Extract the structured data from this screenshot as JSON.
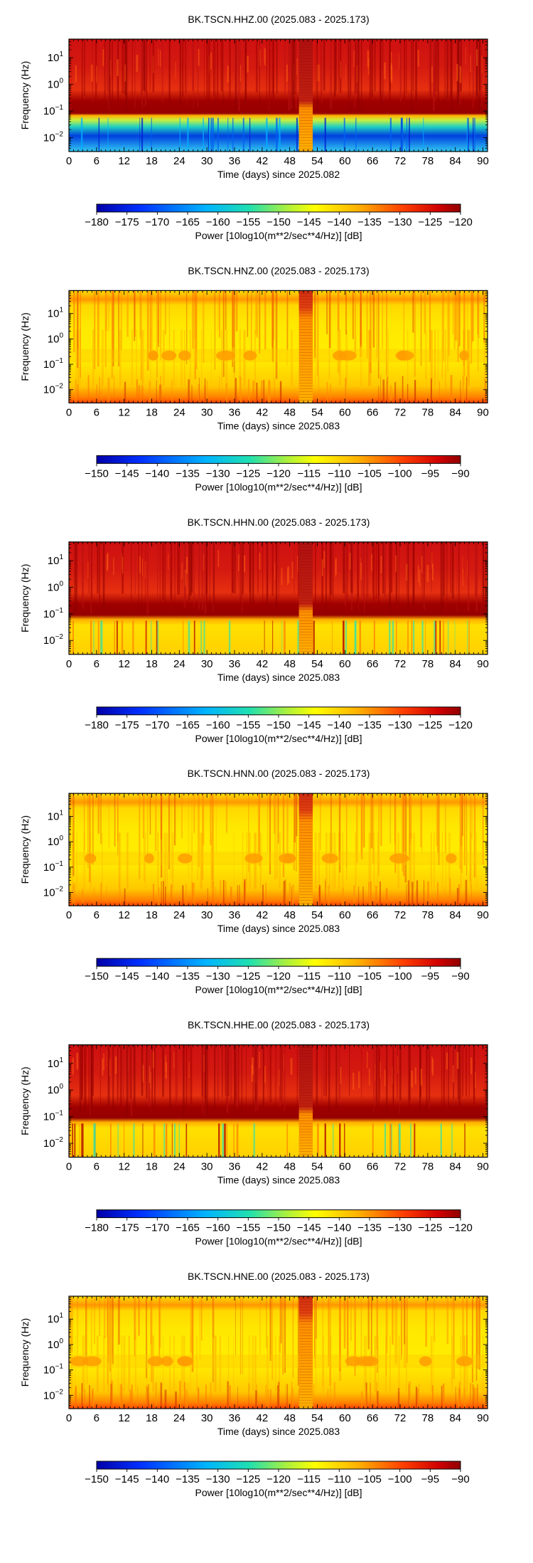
{
  "chart_data": [
    {
      "type": "heatmap",
      "title": "BK.TSCN.HHZ.00 (2025.083 - 2025.173)",
      "xlabel": "Time (days) since 2025.082",
      "ylabel": "Frequency (Hz)",
      "x_ticks": [
        "0",
        "6",
        "12",
        "18",
        "24",
        "30",
        "36",
        "42",
        "48",
        "54",
        "60",
        "66",
        "72",
        "78",
        "84",
        "90"
      ],
      "xlim": [
        0,
        91
      ],
      "y_scale": "log",
      "y_ticks": [
        "10^-2",
        "10^-1",
        "10^0",
        "10^1"
      ],
      "ylim": [
        0.003,
        50
      ],
      "colorbar": {
        "label": "Power [10log10(m**2/sec**4/Hz)] [dB]",
        "ticks": [
          "−180",
          "−175",
          "−170",
          "−165",
          "−160",
          "−155",
          "−150",
          "−145",
          "−140",
          "−135",
          "−130",
          "−125",
          "−120"
        ],
        "range": [
          -180,
          -120
        ]
      },
      "gap_days": [
        50,
        53
      ],
      "colors": {
        "high": "#cc1010",
        "peak": "#8c0000",
        "mid": "#ff7a10",
        "low": "#ffe000",
        "quiet": "#20d0c0",
        "deep": "#1040e0"
      }
    },
    {
      "type": "heatmap",
      "title": "BK.TSCN.HNZ.00 (2025.083 - 2025.173)",
      "xlabel": "Time (days) since 2025.083",
      "ylabel": "Frequency (Hz)",
      "x_ticks": [
        "0",
        "6",
        "12",
        "18",
        "24",
        "30",
        "36",
        "42",
        "48",
        "54",
        "60",
        "66",
        "72",
        "78",
        "84",
        "90"
      ],
      "xlim": [
        0,
        91
      ],
      "y_scale": "log",
      "y_ticks": [
        "10^-2",
        "10^-1",
        "10^0",
        "10^1"
      ],
      "ylim": [
        0.003,
        80
      ],
      "colorbar": {
        "label": "Power [10log10(m**2/sec**4/Hz)] [dB]",
        "ticks": [
          "−150",
          "−145",
          "−140",
          "−135",
          "−130",
          "−125",
          "−120",
          "−115",
          "−110",
          "−105",
          "−100",
          "−95",
          "−90"
        ],
        "range": [
          -150,
          -90
        ]
      },
      "gap_days": [
        50,
        53
      ]
    },
    {
      "type": "heatmap",
      "title": "BK.TSCN.HHN.00 (2025.083 - 2025.173)",
      "xlabel": "Time (days) since 2025.083",
      "ylabel": "Frequency (Hz)",
      "x_ticks": [
        "0",
        "6",
        "12",
        "18",
        "24",
        "30",
        "36",
        "42",
        "48",
        "54",
        "60",
        "66",
        "72",
        "78",
        "84",
        "90"
      ],
      "xlim": [
        0,
        91
      ],
      "y_scale": "log",
      "y_ticks": [
        "10^-2",
        "10^-1",
        "10^0",
        "10^1"
      ],
      "ylim": [
        0.003,
        50
      ],
      "colorbar": {
        "label": "Power [10log10(m**2/sec**4/Hz)] [dB]",
        "ticks": [
          "−180",
          "−175",
          "−170",
          "−165",
          "−160",
          "−155",
          "−150",
          "−145",
          "−140",
          "−135",
          "−130",
          "−125",
          "−120"
        ],
        "range": [
          -180,
          -120
        ]
      },
      "gap_days": [
        50,
        53
      ]
    },
    {
      "type": "heatmap",
      "title": "BK.TSCN.HNN.00 (2025.083 - 2025.173)",
      "xlabel": "Time (days) since 2025.083",
      "ylabel": "Frequency (Hz)",
      "x_ticks": [
        "0",
        "6",
        "12",
        "18",
        "24",
        "30",
        "36",
        "42",
        "48",
        "54",
        "60",
        "66",
        "72",
        "78",
        "84",
        "90"
      ],
      "xlim": [
        0,
        91
      ],
      "y_scale": "log",
      "y_ticks": [
        "10^-2",
        "10^-1",
        "10^0",
        "10^1"
      ],
      "ylim": [
        0.003,
        80
      ],
      "colorbar": {
        "label": "Power [10log10(m**2/sec**4/Hz)] [dB]",
        "ticks": [
          "−150",
          "−145",
          "−140",
          "−135",
          "−130",
          "−125",
          "−120",
          "−115",
          "−110",
          "−105",
          "−100",
          "−95",
          "−90"
        ],
        "range": [
          -150,
          -90
        ]
      },
      "gap_days": [
        50,
        53
      ]
    },
    {
      "type": "heatmap",
      "title": "BK.TSCN.HHE.00 (2025.083 - 2025.173)",
      "xlabel": "Time (days) since 2025.083",
      "ylabel": "Frequency (Hz)",
      "x_ticks": [
        "0",
        "6",
        "12",
        "18",
        "24",
        "30",
        "36",
        "42",
        "48",
        "54",
        "60",
        "66",
        "72",
        "78",
        "84",
        "90"
      ],
      "xlim": [
        0,
        91
      ],
      "y_scale": "log",
      "y_ticks": [
        "10^-2",
        "10^-1",
        "10^0",
        "10^1"
      ],
      "ylim": [
        0.003,
        50
      ],
      "colorbar": {
        "label": "Power [10log10(m**2/sec**4/Hz)] [dB]",
        "ticks": [
          "−180",
          "−175",
          "−170",
          "−165",
          "−160",
          "−155",
          "−150",
          "−145",
          "−140",
          "−135",
          "−130",
          "−125",
          "−120"
        ],
        "range": [
          -180,
          -120
        ]
      },
      "gap_days": [
        50,
        53
      ]
    },
    {
      "type": "heatmap",
      "title": "BK.TSCN.HNE.00 (2025.083 - 2025.173)",
      "xlabel": "Time (days) since 2025.083",
      "ylabel": "Frequency (Hz)",
      "x_ticks": [
        "0",
        "6",
        "12",
        "18",
        "24",
        "30",
        "36",
        "42",
        "48",
        "54",
        "60",
        "66",
        "72",
        "78",
        "84",
        "90"
      ],
      "xlim": [
        0,
        91
      ],
      "y_scale": "log",
      "y_ticks": [
        "10^-2",
        "10^-1",
        "10^0",
        "10^1"
      ],
      "ylim": [
        0.003,
        80
      ],
      "colorbar": {
        "label": "Power [10log10(m**2/sec**4/Hz)] [dB]",
        "ticks": [
          "−150",
          "−145",
          "−140",
          "−135",
          "−130",
          "−125",
          "−120",
          "−115",
          "−110",
          "−105",
          "−100",
          "−95",
          "−90"
        ],
        "range": [
          -150,
          -90
        ]
      },
      "gap_days": [
        50,
        53
      ]
    }
  ]
}
